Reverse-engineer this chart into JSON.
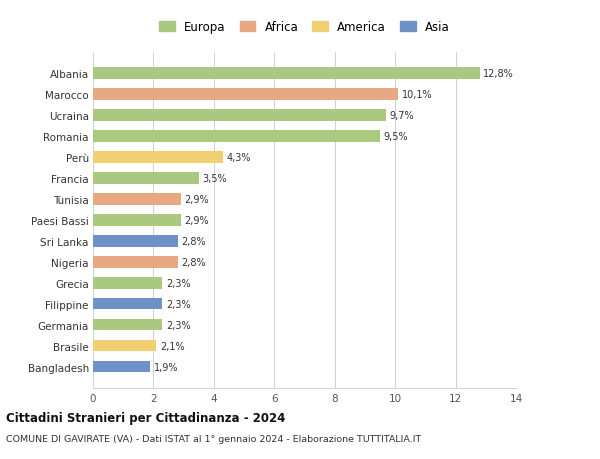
{
  "countries": [
    "Albania",
    "Marocco",
    "Ucraina",
    "Romania",
    "Perù",
    "Francia",
    "Tunisia",
    "Paesi Bassi",
    "Sri Lanka",
    "Nigeria",
    "Grecia",
    "Filippine",
    "Germania",
    "Brasile",
    "Bangladesh"
  ],
  "values": [
    12.8,
    10.1,
    9.7,
    9.5,
    4.3,
    3.5,
    2.9,
    2.9,
    2.8,
    2.8,
    2.3,
    2.3,
    2.3,
    2.1,
    1.9
  ],
  "labels": [
    "12,8%",
    "10,1%",
    "9,7%",
    "9,5%",
    "4,3%",
    "3,5%",
    "2,9%",
    "2,9%",
    "2,8%",
    "2,8%",
    "2,3%",
    "2,3%",
    "2,3%",
    "2,1%",
    "1,9%"
  ],
  "continents": [
    "Europa",
    "Africa",
    "Europa",
    "Europa",
    "America",
    "Europa",
    "Africa",
    "Europa",
    "Asia",
    "Africa",
    "Europa",
    "Asia",
    "Europa",
    "America",
    "Asia"
  ],
  "colors": {
    "Europa": "#a8c97f",
    "Africa": "#e8a882",
    "America": "#f0d070",
    "Asia": "#7090c8"
  },
  "legend_order": [
    "Europa",
    "Africa",
    "America",
    "Asia"
  ],
  "xlim": [
    0,
    14
  ],
  "xticks": [
    0,
    2,
    4,
    6,
    8,
    10,
    12,
    14
  ],
  "title": "Cittadini Stranieri per Cittadinanza - 2024",
  "subtitle": "COMUNE DI GAVIRATE (VA) - Dati ISTAT al 1° gennaio 2024 - Elaborazione TUTTITALIA.IT",
  "background_color": "#ffffff",
  "grid_color": "#d0d0d0",
  "bar_height": 0.55
}
